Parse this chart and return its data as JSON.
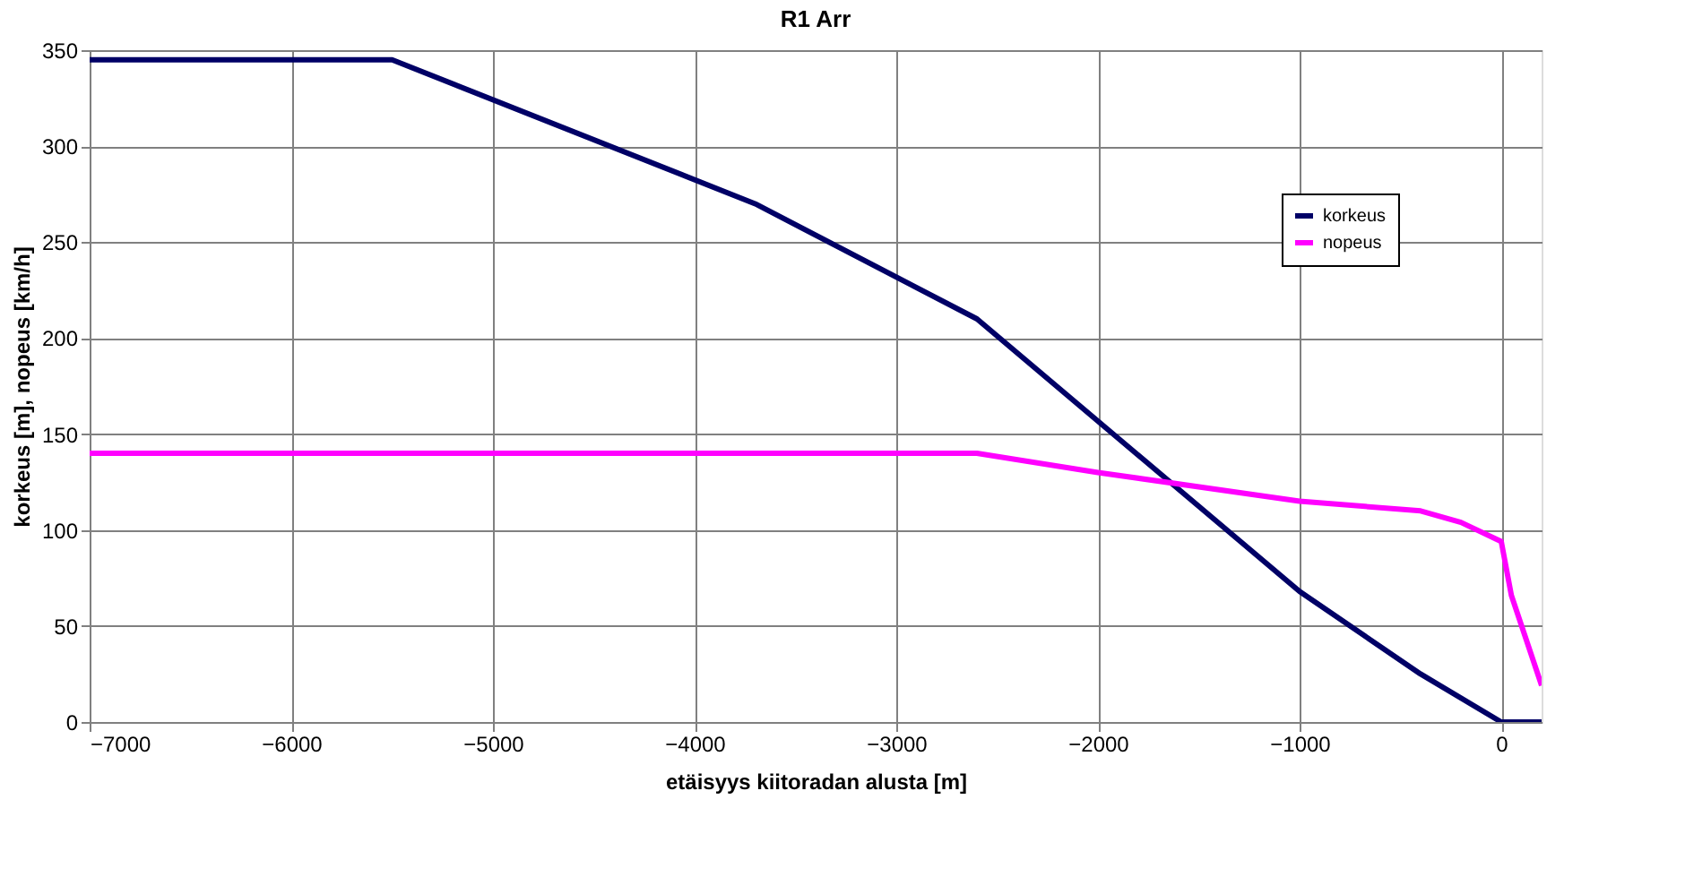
{
  "chart_data": {
    "type": "line",
    "title": "R1 Arr",
    "xlabel": "etäisyys kiitoradan alusta [m]",
    "ylabel": "korkeus [m], nopeus [km/h]",
    "xlim": [
      -7000,
      200
    ],
    "xticks": [
      -7000,
      -6000,
      -5000,
      -4000,
      -3000,
      -2000,
      -1000,
      0
    ],
    "ylim": [
      0,
      350
    ],
    "yticks": [
      0,
      50,
      100,
      150,
      200,
      250,
      300,
      350
    ],
    "grid": true,
    "legend": "top right",
    "marker": "none",
    "line_style": "solid",
    "series": [
      {
        "name": "korkeus",
        "color": "#000066",
        "x": [
          -7000,
          -5500,
          -3700,
          -2600,
          -1000,
          -400,
          0,
          200
        ],
        "values": [
          345,
          345,
          270,
          210,
          68,
          25,
          0,
          0
        ]
      },
      {
        "name": "nopeus",
        "color": "#ff00ff",
        "x": [
          -7000,
          -2600,
          -2000,
          -1000,
          -400,
          -200,
          0,
          50,
          200
        ],
        "values": [
          140,
          140,
          130,
          115,
          110,
          104,
          94,
          66,
          19
        ]
      }
    ]
  }
}
